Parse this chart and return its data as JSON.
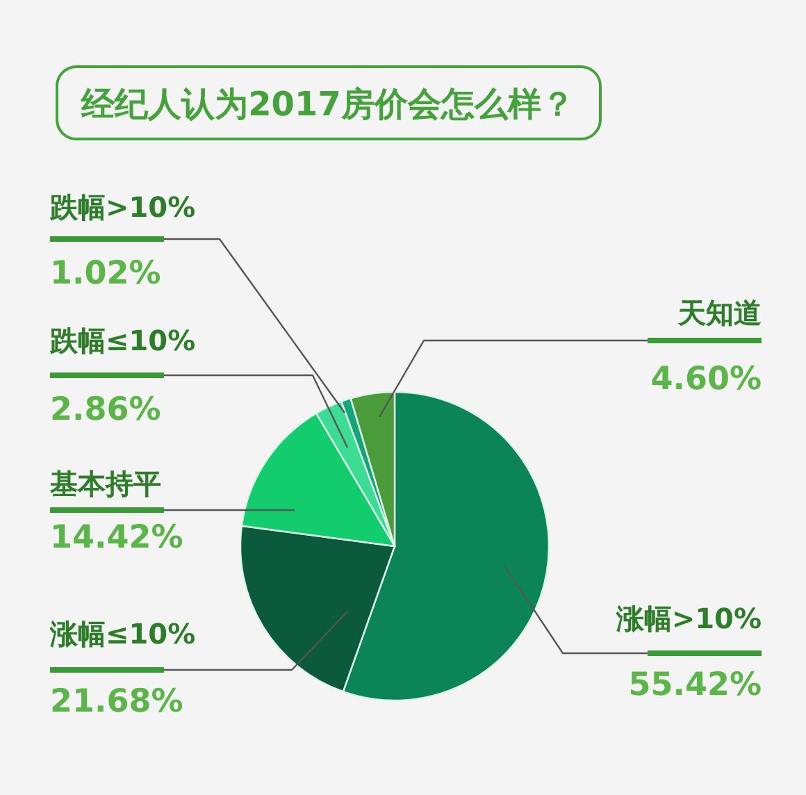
{
  "chart_data": {
    "type": "pie",
    "title": "经纪人认为2017房价会怎么样？",
    "categories": [
      "涨幅>10%",
      "涨幅≤10%",
      "基本持平",
      "跌幅≤10%",
      "跌幅>10%",
      "天知道"
    ],
    "values": [
      55.42,
      21.68,
      14.42,
      2.86,
      1.02,
      4.6
    ],
    "value_labels": [
      "55.42%",
      "21.68%",
      "14.42%",
      "2.86%",
      "1.02%",
      "4.60%"
    ],
    "colors": [
      "#0b8558",
      "#0b5a3e",
      "#12cc6e",
      "#3ddc94",
      "#15a57a",
      "#4a9c3a"
    ],
    "legend": false
  }
}
